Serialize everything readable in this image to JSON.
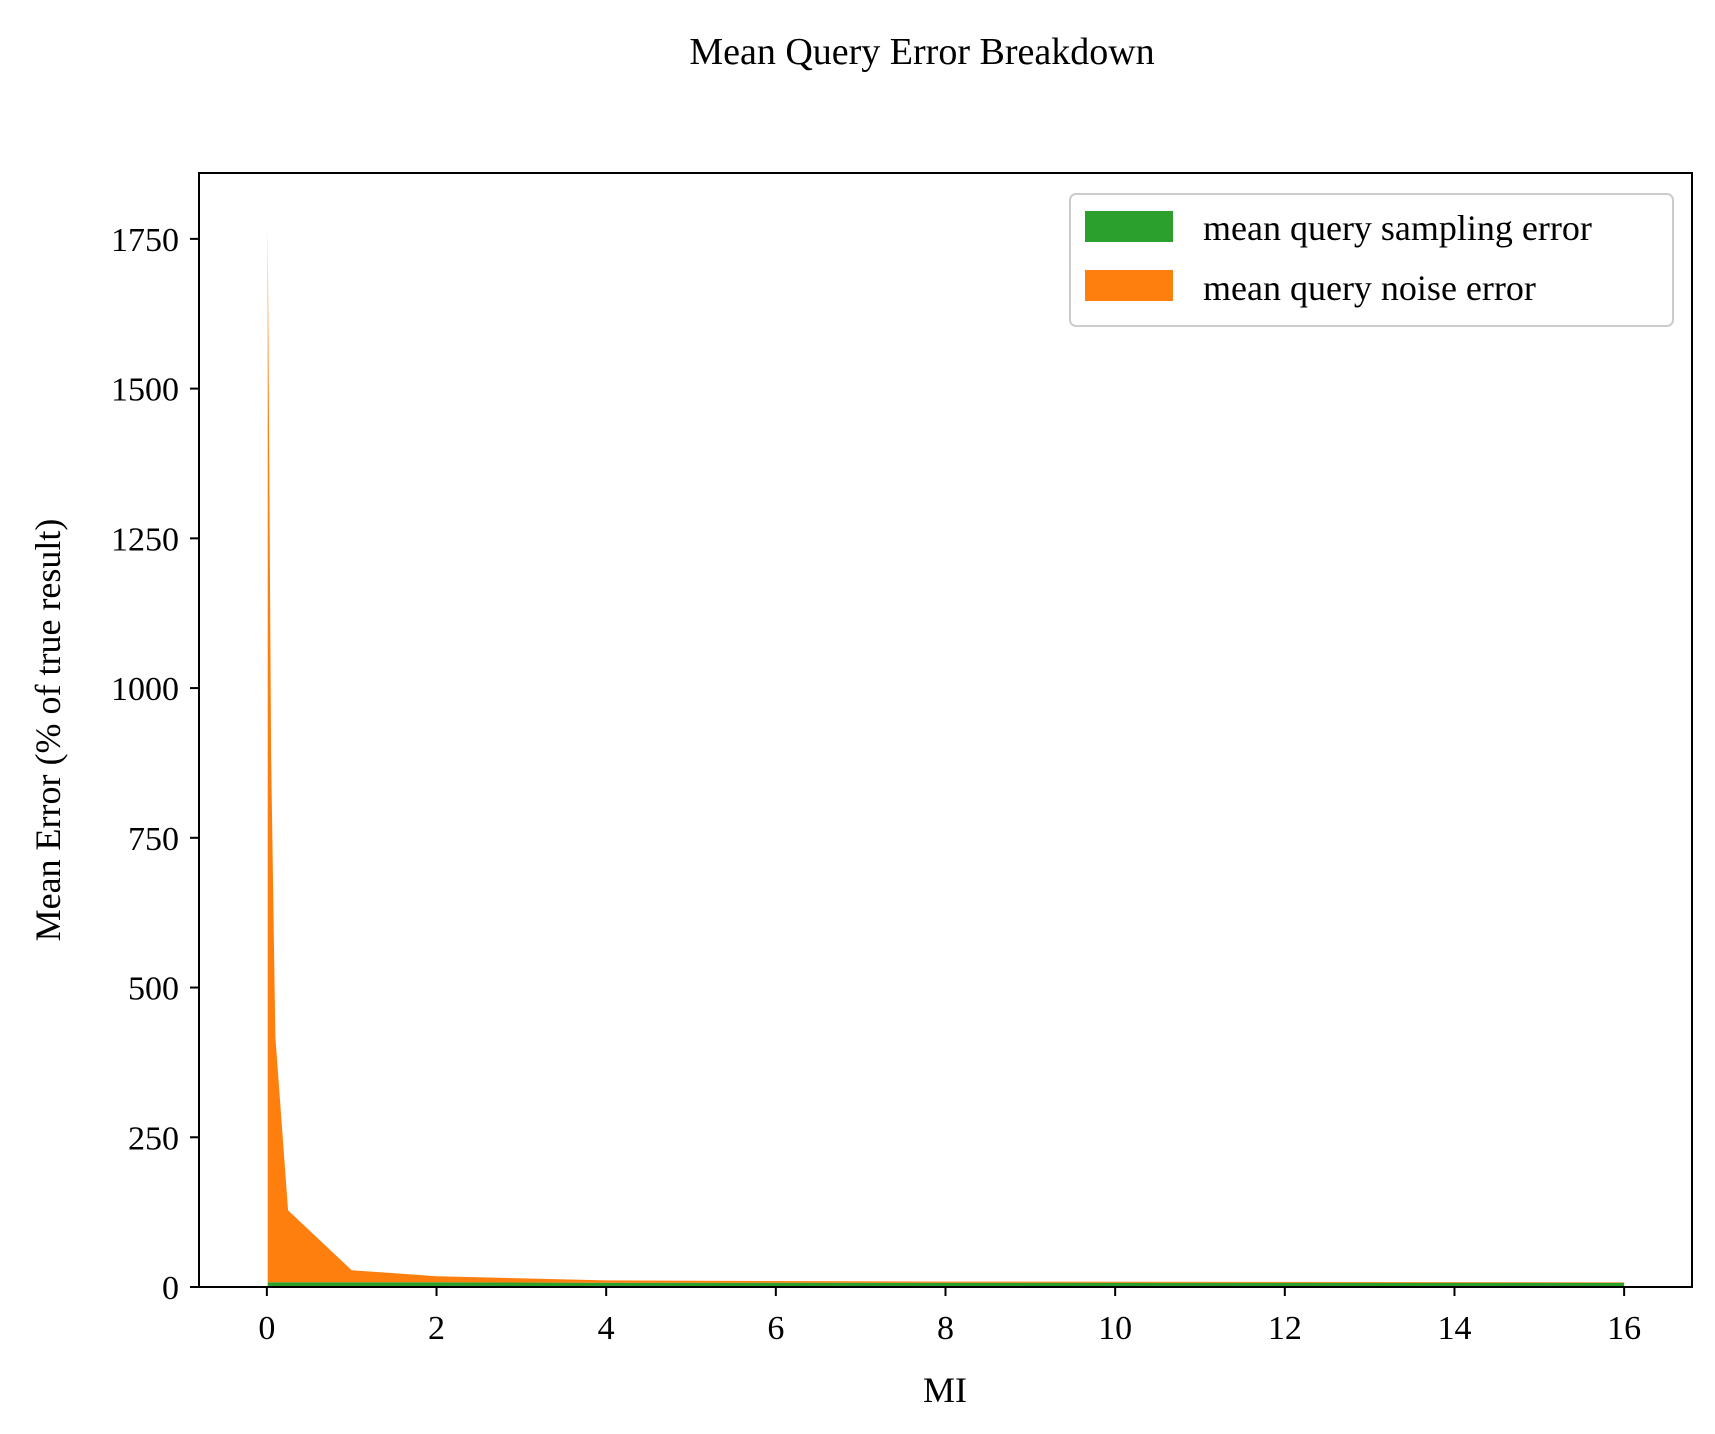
{
  "chart_data": {
    "type": "area",
    "stacked": true,
    "title": "Mean Query Error Breakdown",
    "xlabel": "MI",
    "ylabel": "Mean Error (% of true result)",
    "xlim": [
      -0.8,
      16.8
    ],
    "ylim": [
      0,
      1860
    ],
    "x_ticks": [
      0,
      2,
      4,
      6,
      8,
      10,
      12,
      14,
      16
    ],
    "y_ticks": [
      0,
      250,
      500,
      750,
      1000,
      1250,
      1500,
      1750
    ],
    "grid": false,
    "legend": {
      "placement": "top-right"
    },
    "x": [
      0.01,
      0.05,
      0.1,
      0.25,
      1,
      2,
      4,
      8,
      16
    ],
    "series": [
      {
        "name": "mean query sampling error",
        "color": "#2ca02c",
        "values": [
          8,
          8,
          8,
          8,
          8,
          8,
          7,
          7,
          7
        ]
      },
      {
        "name": "mean query noise error",
        "color": "#ff7f0e",
        "values": [
          1762,
          880,
          410,
          120,
          20,
          10,
          4,
          2,
          1
        ]
      }
    ]
  }
}
